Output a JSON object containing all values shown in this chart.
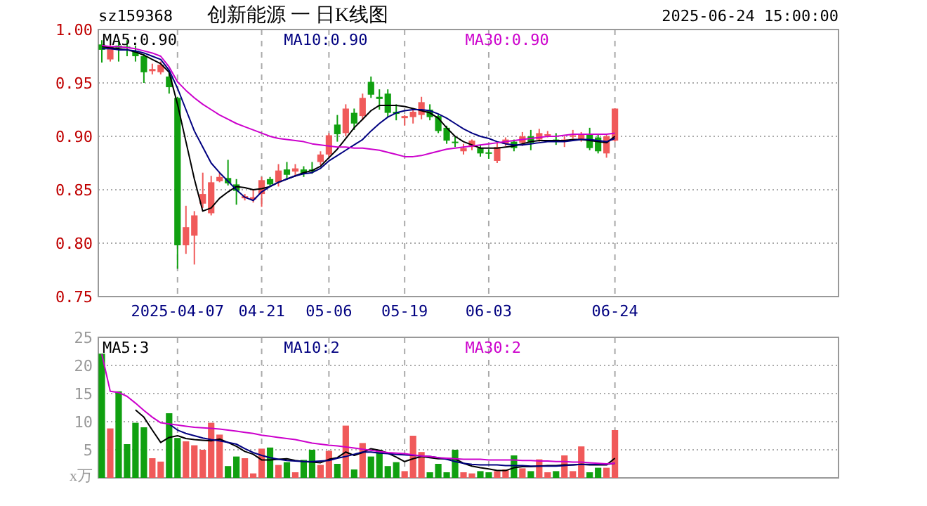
{
  "chart_data": [
    {
      "type": "candlestick",
      "title": "创新能源 一 日K线图",
      "annotations": [
        "sz159368",
        "2025-06-24 15:00:00"
      ],
      "categories": [
        null,
        null,
        null,
        null,
        null,
        null,
        null,
        null,
        null,
        "2025-04-07",
        null,
        null,
        null,
        null,
        null,
        null,
        null,
        null,
        null,
        "04-21",
        null,
        null,
        null,
        null,
        null,
        null,
        null,
        "05-06",
        null,
        null,
        null,
        null,
        null,
        null,
        null,
        null,
        "05-19",
        null,
        null,
        null,
        null,
        null,
        null,
        null,
        null,
        null,
        "06-03",
        null,
        null,
        null,
        null,
        null,
        null,
        null,
        null,
        null,
        null,
        null,
        null,
        null,
        null,
        "06-24"
      ],
      "ohlc": [
        [
          0.986,
          0.99,
          0.969,
          0.981
        ],
        [
          0.972,
          0.986,
          0.97,
          0.984
        ],
        [
          0.985,
          0.99,
          0.97,
          0.983
        ],
        [
          0.984,
          0.99,
          0.975,
          0.983
        ],
        [
          0.98,
          0.985,
          0.97,
          0.975
        ],
        [
          0.975,
          0.977,
          0.95,
          0.96
        ],
        [
          0.961,
          0.968,
          0.958,
          0.963
        ],
        [
          0.96,
          0.97,
          0.958,
          0.967
        ],
        [
          0.956,
          0.96,
          0.94,
          0.946
        ],
        [
          0.936,
          0.937,
          0.776,
          0.798
        ],
        [
          0.798,
          0.835,
          0.79,
          0.815
        ],
        [
          0.807,
          0.83,
          0.78,
          0.826
        ],
        [
          0.837,
          0.866,
          0.833,
          0.846
        ],
        [
          0.828,
          0.863,
          0.826,
          0.857
        ],
        [
          0.858,
          0.866,
          0.857,
          0.862
        ],
        [
          0.861,
          0.878,
          0.854,
          0.856
        ],
        [
          0.855,
          0.86,
          0.836,
          0.849
        ],
        [
          0.842,
          0.846,
          0.84,
          0.844
        ],
        [
          0.841,
          0.85,
          0.838,
          0.843
        ],
        [
          0.846,
          0.862,
          0.834,
          0.859
        ],
        [
          0.86,
          0.862,
          0.853,
          0.855
        ],
        [
          0.857,
          0.874,
          0.853,
          0.868
        ],
        [
          0.869,
          0.876,
          0.86,
          0.864
        ],
        [
          0.867,
          0.874,
          0.862,
          0.87
        ],
        [
          0.869,
          0.872,
          0.862,
          0.865
        ],
        [
          0.869,
          0.876,
          0.865,
          0.867
        ],
        [
          0.876,
          0.886,
          0.873,
          0.883
        ],
        [
          0.883,
          0.903,
          0.881,
          0.901
        ],
        [
          0.911,
          0.92,
          0.895,
          0.902
        ],
        [
          0.903,
          0.93,
          0.9,
          0.926
        ],
        [
          0.922,
          0.926,
          0.906,
          0.912
        ],
        [
          0.919,
          0.94,
          0.915,
          0.936
        ],
        [
          0.951,
          0.956,
          0.936,
          0.939
        ],
        [
          0.937,
          0.944,
          0.925,
          0.935
        ],
        [
          0.94,
          0.944,
          0.918,
          0.922
        ],
        [
          0.923,
          0.93,
          0.915,
          0.921
        ],
        [
          0.917,
          0.92,
          0.91,
          0.919
        ],
        [
          0.918,
          0.926,
          0.912,
          0.923
        ],
        [
          0.92,
          0.937,
          0.916,
          0.932
        ],
        [
          0.925,
          0.93,
          0.915,
          0.918
        ],
        [
          0.919,
          0.921,
          0.903,
          0.905
        ],
        [
          0.908,
          0.91,
          0.893,
          0.896
        ],
        [
          0.895,
          0.9,
          0.89,
          0.894
        ],
        [
          0.886,
          0.893,
          0.883,
          0.889
        ],
        [
          0.89,
          0.897,
          0.887,
          0.896
        ],
        [
          0.889,
          0.892,
          0.881,
          0.884
        ],
        [
          0.885,
          0.888,
          0.879,
          0.884
        ],
        [
          0.877,
          0.894,
          0.875,
          0.89
        ],
        [
          0.893,
          0.899,
          0.891,
          0.897
        ],
        [
          0.895,
          0.897,
          0.886,
          0.889
        ],
        [
          0.894,
          0.904,
          0.891,
          0.9
        ],
        [
          0.9,
          0.906,
          0.887,
          0.894
        ],
        [
          0.897,
          0.907,
          0.895,
          0.903
        ],
        [
          0.901,
          0.905,
          0.899,
          0.902
        ],
        [
          0.897,
          0.903,
          0.892,
          0.896
        ],
        [
          0.896,
          0.9,
          0.89,
          0.897
        ],
        [
          0.9,
          0.906,
          0.898,
          0.901
        ],
        [
          0.897,
          0.904,
          0.895,
          0.902
        ],
        [
          0.902,
          0.908,
          0.887,
          0.889
        ],
        [
          0.899,
          0.902,
          0.884,
          0.886
        ],
        [
          0.884,
          0.902,
          0.88,
          0.9
        ],
        [
          0.896,
          0.926,
          0.895,
          0.926
        ]
      ],
      "series": [
        {
          "type": "line",
          "name": "MA5:0.90",
          "color": "#000000",
          "values": [
            0.984,
            0.983,
            0.982,
            0.981,
            0.979,
            0.976,
            0.972,
            0.968,
            0.96,
            0.93,
            0.895,
            0.86,
            0.83,
            0.833,
            0.842,
            0.848,
            0.853,
            0.852,
            0.85,
            0.851,
            0.853,
            0.857,
            0.86,
            0.863,
            0.866,
            0.868,
            0.872,
            0.88,
            0.888,
            0.898,
            0.908,
            0.916,
            0.924,
            0.929,
            0.929,
            0.929,
            0.928,
            0.926,
            0.924,
            0.922,
            0.917,
            0.908,
            0.9,
            0.895,
            0.892,
            0.889,
            0.889,
            0.889,
            0.89,
            0.891,
            0.893,
            0.895,
            0.896,
            0.896,
            0.896,
            0.896,
            0.897,
            0.897,
            0.896,
            0.895,
            0.894,
            0.9
          ]
        },
        {
          "type": "line",
          "name": "MA10:0.90",
          "color": "#000080",
          "values": [
            0.982,
            0.982,
            0.981,
            0.981,
            0.98,
            0.978,
            0.975,
            0.972,
            0.962,
            0.945,
            0.925,
            0.905,
            0.89,
            0.875,
            0.866,
            0.858,
            0.85,
            0.843,
            0.84,
            0.848,
            0.853,
            0.857,
            0.86,
            0.863,
            0.865,
            0.866,
            0.87,
            0.877,
            0.882,
            0.887,
            0.892,
            0.897,
            0.905,
            0.912,
            0.918,
            0.922,
            0.924,
            0.925,
            0.925,
            0.924,
            0.921,
            0.917,
            0.912,
            0.907,
            0.903,
            0.9,
            0.898,
            0.895,
            0.893,
            0.892,
            0.892,
            0.893,
            0.894,
            0.895,
            0.895,
            0.895,
            0.896,
            0.897,
            0.897,
            0.896,
            0.895,
            0.898
          ]
        },
        {
          "type": "line",
          "name": "MA30:0.90",
          "color": "#cc00cc",
          "values": [
            0.985,
            0.984,
            0.984,
            0.983,
            0.982,
            0.98,
            0.978,
            0.975,
            0.965,
            0.951,
            0.943,
            0.936,
            0.93,
            0.925,
            0.92,
            0.916,
            0.912,
            0.909,
            0.906,
            0.903,
            0.9,
            0.898,
            0.897,
            0.896,
            0.895,
            0.893,
            0.892,
            0.891,
            0.89,
            0.89,
            0.889,
            0.889,
            0.888,
            0.887,
            0.885,
            0.883,
            0.881,
            0.881,
            0.882,
            0.884,
            0.886,
            0.888,
            0.889,
            0.89,
            0.891,
            0.892,
            0.893,
            0.894,
            0.895,
            0.896,
            0.897,
            0.898,
            0.899,
            0.9,
            0.9,
            0.901,
            0.902,
            0.902,
            0.902,
            0.902,
            0.902,
            0.903
          ]
        }
      ],
      "ylim": [
        0.75,
        1.0
      ],
      "yticks": [
        {
          "value": 0.75,
          "label": "0.75"
        },
        {
          "value": 0.8,
          "label": "0.80"
        },
        {
          "value": 0.85,
          "label": "0.85"
        },
        {
          "value": 0.9,
          "label": "0.90"
        },
        {
          "value": 0.95,
          "label": "0.95"
        },
        {
          "value": 1.0,
          "label": "1.00"
        }
      ],
      "grid": true,
      "legend": "top"
    },
    {
      "type": "bar",
      "ylabel": "x万",
      "categories": [
        null,
        null,
        null,
        null,
        null,
        null,
        null,
        null,
        null,
        null,
        null,
        null,
        null,
        null,
        null,
        null,
        null,
        null,
        null,
        null,
        null,
        null,
        null,
        null,
        null,
        null,
        null,
        null,
        null,
        null,
        null,
        null,
        null,
        null,
        null,
        null,
        null,
        null,
        null,
        null,
        null,
        null,
        null,
        null,
        null,
        null,
        null,
        null,
        null,
        null,
        null,
        null,
        null,
        null,
        null,
        null,
        null,
        null,
        null,
        null,
        null,
        null
      ],
      "series": [
        {
          "type": "bar",
          "values": [
            22.1,
            8.8,
            15.4,
            6,
            9.8,
            9,
            3.5,
            2.9,
            11.5,
            7.1,
            6.5,
            5.8,
            5,
            9.8,
            7.7,
            2.1,
            3.8,
            3.5,
            0.8,
            5.2,
            5.4,
            2.3,
            2.8,
            1,
            3.2,
            5,
            2.3,
            4.8,
            2.5,
            9.3,
            1.5,
            6.2,
            3.8,
            5,
            2.1,
            2.8,
            1.2,
            7.5,
            4.6,
            1,
            2.5,
            1,
            5,
            1,
            0.8,
            1.2,
            1,
            1.2,
            1.5,
            4,
            1.7,
            1.2,
            3.3,
            1,
            1.2,
            4,
            1.2,
            5.6,
            1,
            1.8,
            1.8,
            8.5
          ],
          "colors": [
            "#10a010",
            "#f05a5a",
            "#10a010",
            "#10a010",
            "#10a010",
            "#10a010",
            "#f05a5a",
            "#f05a5a",
            "#10a010",
            "#10a010",
            "#f05a5a",
            "#f05a5a",
            "#f05a5a",
            "#f05a5a",
            "#f05a5a",
            "#10a010",
            "#10a010",
            "#f05a5a",
            "#f05a5a",
            "#f05a5a",
            "#10a010",
            "#f05a5a",
            "#10a010",
            "#f05a5a",
            "#10a010",
            "#10a010",
            "#f05a5a",
            "#f05a5a",
            "#10a010",
            "#f05a5a",
            "#10a010",
            "#f05a5a",
            "#10a010",
            "#10a010",
            "#10a010",
            "#10a010",
            "#f05a5a",
            "#f05a5a",
            "#f05a5a",
            "#10a010",
            "#10a010",
            "#10a010",
            "#10a010",
            "#f05a5a",
            "#f05a5a",
            "#10a010",
            "#10a010",
            "#f05a5a",
            "#f05a5a",
            "#10a010",
            "#f05a5a",
            "#10a010",
            "#f05a5a",
            "#f05a5a",
            "#10a010",
            "#f05a5a",
            "#f05a5a",
            "#f05a5a",
            "#10a010",
            "#10a010",
            "#f05a5a",
            "#f05a5a"
          ]
        },
        {
          "type": "line",
          "name": "MA5:3",
          "color": "#000000",
          "values": [
            null,
            null,
            null,
            null,
            12.1,
            10.8,
            8.5,
            6.3,
            7.2,
            7.5,
            7,
            6.8,
            6.7,
            6.6,
            6.9,
            6.3,
            5.6,
            4.7,
            4.2,
            3.2,
            3.2,
            3.3,
            3.4,
            3.1,
            2.9,
            2.8,
            2.7,
            3.3,
            3.6,
            4.6,
            4,
            4.5,
            5.2,
            4.9,
            4.4,
            3.7,
            2.9,
            3.4,
            3.8,
            3.6,
            3.4,
            3.4,
            3.4,
            2.6,
            2.1,
            1.8,
            1.6,
            1.3,
            1.3,
            1.8,
            2,
            2,
            2.1,
            2.2,
            2.2,
            2.3,
            2.3,
            2.4,
            2.3,
            2.3,
            2.3,
            3.5
          ]
        },
        {
          "type": "line",
          "name": "MA10:2",
          "color": "#000080",
          "values": [
            null,
            null,
            null,
            null,
            null,
            null,
            null,
            null,
            9.6,
            8.5,
            7.9,
            7.5,
            7.1,
            6.8,
            6.6,
            6.3,
            6,
            5.2,
            4.5,
            4,
            3.6,
            3.3,
            3.1,
            3,
            2.9,
            2.9,
            3,
            3.1,
            3.5,
            3.8,
            4.2,
            4.6,
            4.6,
            4.4,
            4.3,
            4.2,
            4.1,
            4,
            3.9,
            3.8,
            3.6,
            3.3,
            2.9,
            2.6,
            2.4,
            2.3,
            2.3,
            2.3,
            2.2,
            2.2,
            2.2,
            2.1,
            2.1,
            2.1,
            2.1,
            2.2,
            2.3,
            2.4,
            2.4,
            2.4,
            2.4,
            2.6
          ]
        },
        {
          "type": "line",
          "name": "MA30:2",
          "color": "#cc00cc",
          "values": [
            22,
            15.4,
            15.2,
            14.5,
            13.3,
            12,
            10.8,
            9.8,
            9.6,
            9.4,
            9.2,
            9,
            8.9,
            8.8,
            8.7,
            8.5,
            8.3,
            8.1,
            7.9,
            7.6,
            7.4,
            7.2,
            7,
            6.8,
            6.5,
            6.2,
            6,
            5.8,
            5.7,
            5.5,
            5.3,
            5.1,
            4.9,
            4.7,
            4.5,
            4.4,
            4.3,
            4.1,
            3.9,
            3.8,
            3.6,
            3.5,
            3.4,
            3.3,
            3.3,
            3.3,
            3.2,
            3.2,
            3.2,
            3.2,
            3.1,
            3.1,
            3,
            3,
            2.9,
            2.9,
            2.8,
            2.8,
            2.7,
            2.6,
            2.5,
            2.6
          ]
        }
      ],
      "ylim": [
        0,
        25
      ],
      "yticks": [
        5,
        10,
        15,
        20,
        25
      ],
      "grid": true,
      "legend": "top",
      "tick_labels": "y"
    }
  ]
}
